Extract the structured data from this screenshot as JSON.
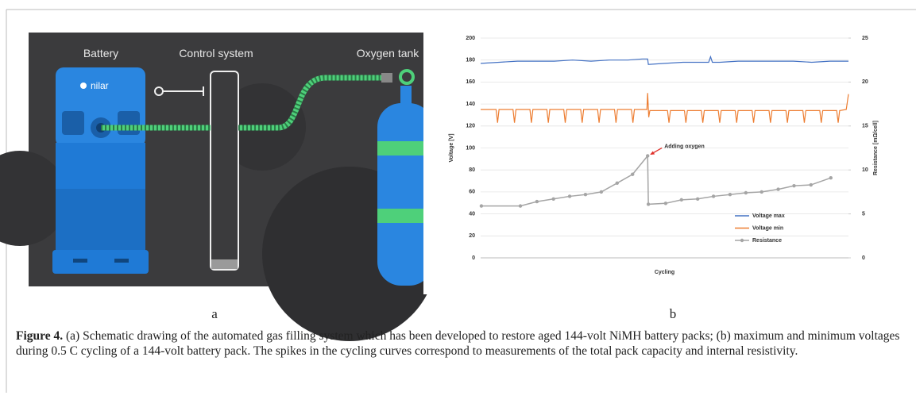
{
  "figure": {
    "panel_a": {
      "labels": [
        "Battery",
        "Control system",
        "Oxygen tank"
      ],
      "logo": "nilar",
      "tag": "a"
    },
    "panel_b": {
      "tag": "b"
    },
    "caption": {
      "label": "Figure 4.",
      "text": "(a) Schematic drawing of the automated gas filling system which has been developed to restore aged 144-volt NiMH battery packs; (b) maximum and minimum voltages during 0.5 C cycling of a 144-volt battery pack. The spikes in the cycling curves correspond to measurements of the total pack capacity and internal resistivity."
    }
  },
  "chart_data": {
    "type": "line",
    "xlabel": "Cycling",
    "ylabel": "Voltage [V]",
    "y2label": "Resistance [mΩ/cell]",
    "xlim": [
      0,
      100
    ],
    "ylim": [
      0,
      200
    ],
    "yticks": [
      0,
      20,
      40,
      60,
      80,
      100,
      120,
      140,
      160,
      180,
      200
    ],
    "y2lim": [
      0,
      25
    ],
    "y2ticks": [
      0,
      5,
      10,
      15,
      20,
      25
    ],
    "grid": true,
    "legend": "lower right",
    "annotations": [
      {
        "text": "Adding oxygen",
        "arrow_color": "#e0302a"
      }
    ],
    "series": [
      {
        "name": "Voltage max",
        "color": "#4472c4",
        "x": [
          0,
          5,
          10,
          15,
          20,
          25,
          30,
          35,
          40,
          44,
          45.4,
          45.6,
          50,
          55,
          60,
          62,
          62.5,
          63,
          65,
          70,
          75,
          80,
          85,
          90,
          95,
          100
        ],
        "values": [
          177,
          178,
          179,
          179,
          179,
          180,
          179,
          180,
          180,
          181,
          181,
          176,
          177,
          178,
          178,
          178,
          183,
          178,
          178,
          179,
          179,
          179,
          179,
          178,
          179,
          179
        ]
      },
      {
        "name": "Voltage min",
        "color": "#ed7d31",
        "x": [
          0,
          4.2,
          4.6,
          5.0,
          8.8,
          9.2,
          9.6,
          13.4,
          13.8,
          14.2,
          18.0,
          18.4,
          18.8,
          22.6,
          23.0,
          23.4,
          27.2,
          27.6,
          28.0,
          31.8,
          32.2,
          32.6,
          36.4,
          36.8,
          37.2,
          41.0,
          41.4,
          41.8,
          45.2,
          45.4,
          45.7,
          46.0,
          50.8,
          51.2,
          51.6,
          55.4,
          55.8,
          56.2,
          60.0,
          60.4,
          60.8,
          64.6,
          65.0,
          65.4,
          69.2,
          69.6,
          70.0,
          73.8,
          74.2,
          74.6,
          78.4,
          78.8,
          79.2,
          83.0,
          83.4,
          83.8,
          87.6,
          88.0,
          88.4,
          92.2,
          92.6,
          93.0,
          96.8,
          97.2,
          97.6,
          99.4,
          100
        ],
        "values": [
          135,
          135,
          123,
          135,
          135,
          123,
          135,
          135,
          123,
          135,
          135,
          123,
          135,
          135,
          123,
          135,
          135,
          123,
          135,
          135,
          123,
          135,
          135,
          123,
          135,
          135,
          123,
          135,
          135,
          150,
          128,
          134,
          134,
          123,
          134,
          134,
          123,
          134,
          134,
          123,
          134,
          134,
          123,
          134,
          134,
          123,
          134,
          134,
          123,
          134,
          134,
          123,
          134,
          134,
          123,
          134,
          134,
          123,
          134,
          134,
          123,
          134,
          134,
          123,
          134,
          135,
          149
        ]
      },
      {
        "name": "Resistance",
        "color": "#a5a5a5",
        "axis": "y2",
        "markers": true,
        "x": [
          0.2,
          10.8,
          15.3,
          19.8,
          24.2,
          28.5,
          32.8,
          37.1,
          41.3,
          45.4,
          45.6,
          50.3,
          54.6,
          59.0,
          63.3,
          67.8,
          72.1,
          76.4,
          80.9,
          85.2,
          89.8,
          95.2
        ],
        "values": [
          5.9,
          5.9,
          6.4,
          6.7,
          7.0,
          7.2,
          7.5,
          8.5,
          9.5,
          11.6,
          6.1,
          6.2,
          6.6,
          6.7,
          7.0,
          7.2,
          7.4,
          7.5,
          7.8,
          8.2,
          8.3,
          9.1
        ]
      }
    ]
  }
}
